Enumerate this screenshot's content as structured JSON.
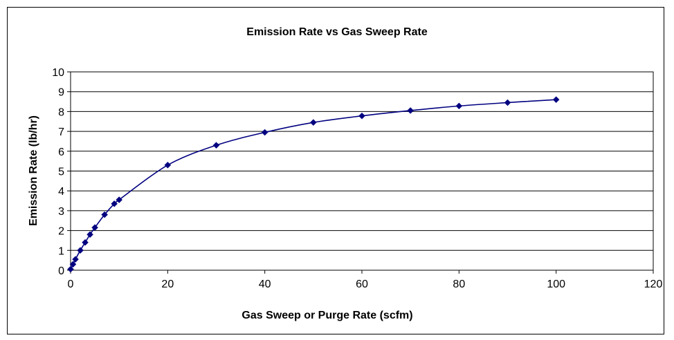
{
  "chart_data": {
    "type": "scatter",
    "title": "Emission Rate vs Gas Sweep Rate",
    "xlabel": "Gas Sweep or Purge Rate (scfm)",
    "ylabel": "Emission Rate (lb/hr)",
    "xlim": [
      0,
      120
    ],
    "ylim": [
      0,
      10
    ],
    "x_ticks": [
      0,
      20,
      40,
      60,
      80,
      100,
      120
    ],
    "y_ticks": [
      0,
      1,
      2,
      3,
      4,
      5,
      6,
      7,
      8,
      9,
      10
    ],
    "grid": "horizontal",
    "legend": "none",
    "series": [
      {
        "x": [
          0,
          0.5,
          1,
          2,
          3,
          4,
          5,
          7,
          9,
          10,
          20,
          30,
          40,
          50,
          60,
          70,
          80,
          90,
          100
        ],
        "y": [
          0.05,
          0.3,
          0.55,
          1.0,
          1.4,
          1.8,
          2.15,
          2.8,
          3.35,
          3.55,
          5.3,
          6.3,
          6.95,
          7.45,
          7.78,
          8.05,
          8.28,
          8.45,
          8.6
        ],
        "color": "#000080",
        "marker": "diamond",
        "smooth_line": true
      }
    ]
  }
}
